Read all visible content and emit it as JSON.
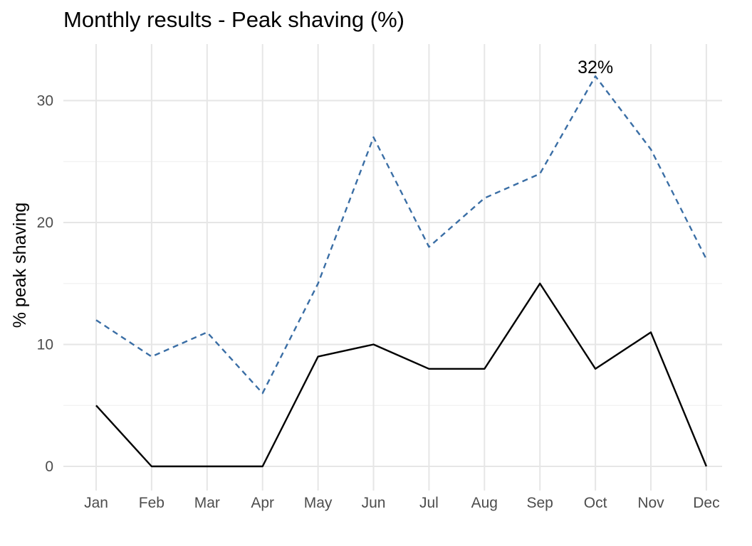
{
  "chart_data": {
    "type": "line",
    "title": "Monthly results - Peak shaving (%)",
    "xlabel": "",
    "ylabel": "% peak shaving",
    "categories": [
      "Jan",
      "Feb",
      "Mar",
      "Apr",
      "May",
      "Jun",
      "Jul",
      "Aug",
      "Sep",
      "Oct",
      "Nov",
      "Dec"
    ],
    "series": [
      {
        "values": [
          12,
          9,
          11,
          6,
          15,
          27,
          18,
          22,
          24,
          32,
          26,
          17
        ],
        "color": "#3a6ea5",
        "style": "dashed"
      },
      {
        "values": [
          5,
          0,
          0,
          0,
          9,
          10,
          8,
          8,
          15,
          8,
          11,
          0
        ],
        "color": "#000000",
        "style": "solid"
      }
    ],
    "yticks": [
      0,
      10,
      20,
      30
    ],
    "ylim": [
      -2,
      35
    ],
    "grid": true,
    "annotations": [
      {
        "text": "32%",
        "category": "Oct",
        "value": 32
      }
    ]
  }
}
